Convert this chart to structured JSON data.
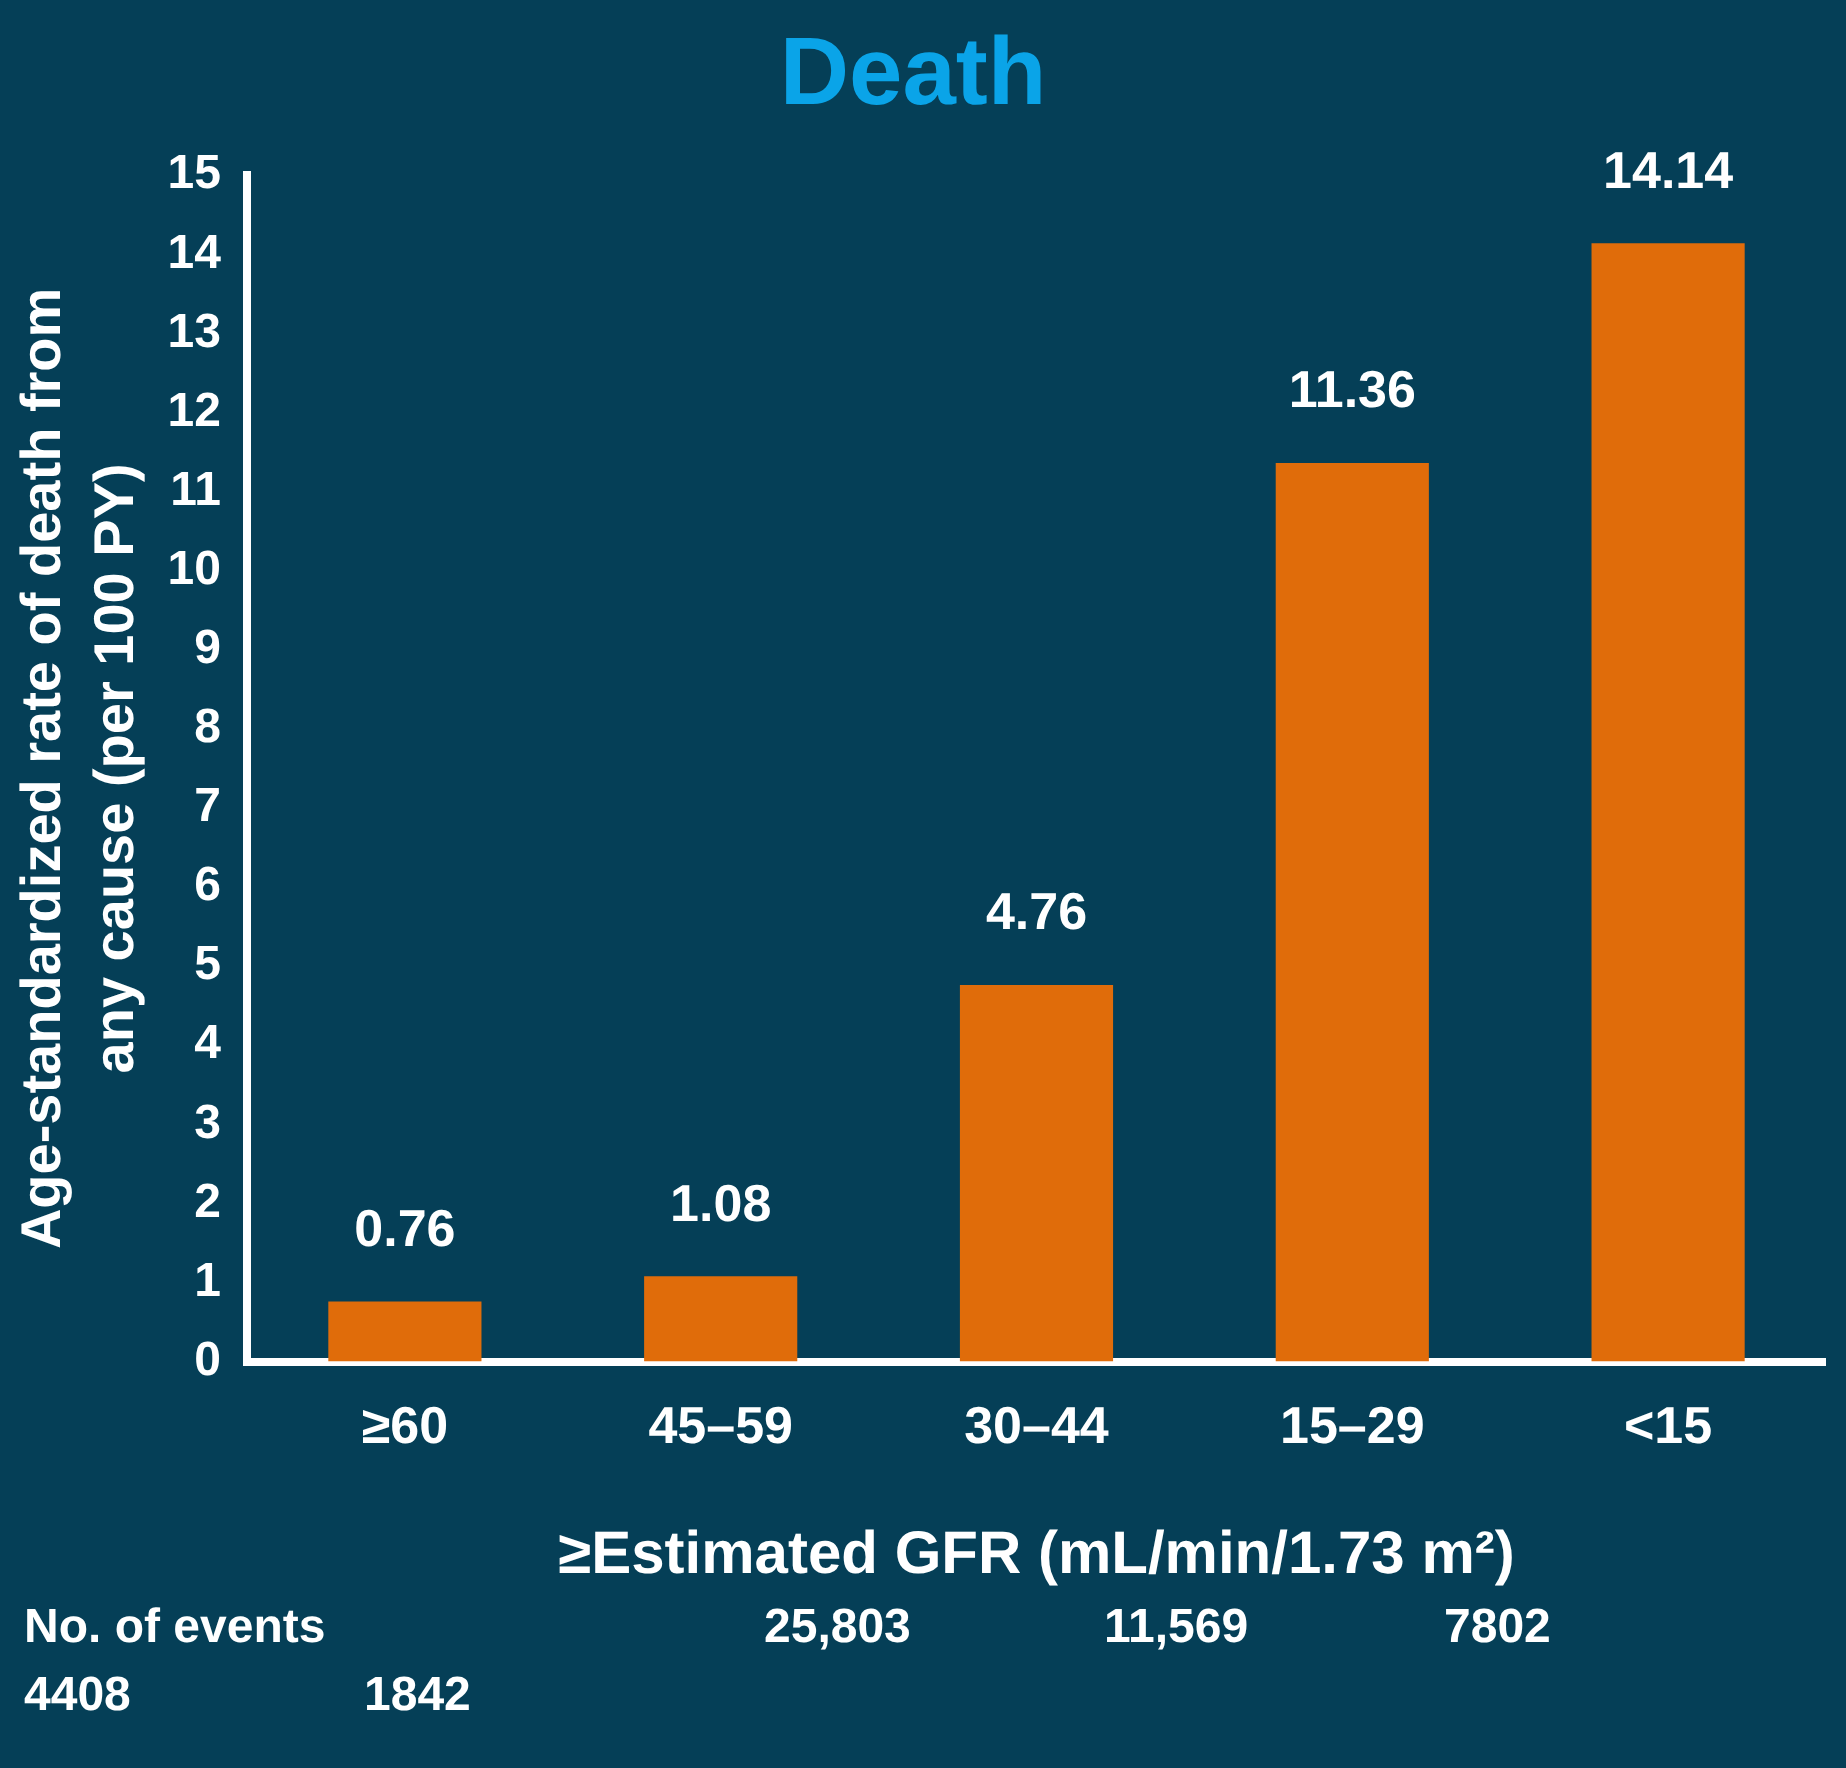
{
  "chart_data": {
    "type": "bar",
    "title": "Death",
    "ylabel": "Age-standardized rate of death from any cause (per 100 PY)",
    "xlabel": "≥Estimated GFR (mL/min/1.73 m²)",
    "categories": [
      "≥60",
      "45–59",
      "30–44",
      "15–29",
      "<15"
    ],
    "values": [
      0.76,
      1.08,
      4.76,
      11.36,
      14.14
    ],
    "color": "#e06c0a",
    "ylim": [
      0,
      15
    ],
    "yticks": [
      0,
      1,
      2,
      3,
      4,
      5,
      6,
      7,
      8,
      9,
      10,
      11,
      12,
      13,
      14,
      15
    ],
    "grid": false,
    "legend": false,
    "data_labels": true,
    "annotations": [
      "No. of events",
      "25,803",
      "11,569",
      "7802",
      "4408",
      "1842"
    ]
  }
}
